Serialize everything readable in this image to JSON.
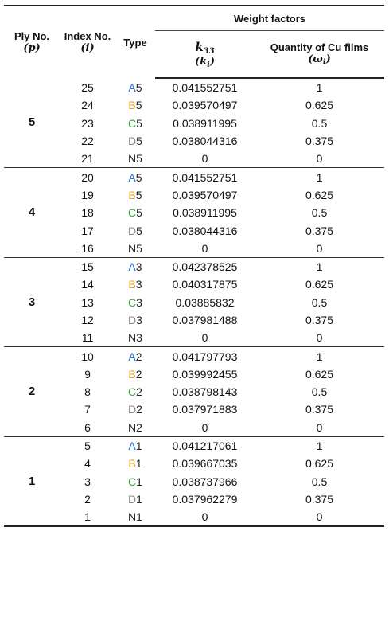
{
  "header": {
    "ply_no": "Ply No.",
    "ply_sym": "(p)",
    "index_no": "Index No.",
    "index_sym": "(i)",
    "type": "Type",
    "weight_factors": "Weight factors",
    "k33_main": "k",
    "k33_sub": "33",
    "k33_paren_main": "(k",
    "k33_paren_sub": "i",
    "k33_paren_end": ")",
    "qty_label": "Quantity of Cu films",
    "qty_paren_main": "(ω",
    "qty_paren_sub": "i",
    "qty_paren_end": ")"
  },
  "type_colors": {
    "A": "#2a6fd6",
    "B": "#e2a21a",
    "C": "#3aa63a",
    "D": "#888888",
    "N": "#222222"
  },
  "groups": [
    {
      "ply": "5",
      "rows": [
        {
          "index": "25",
          "letter": "A",
          "num": "5",
          "k": "0.041552751",
          "w": "1"
        },
        {
          "index": "24",
          "letter": "B",
          "num": "5",
          "k": "0.039570497",
          "w": "0.625"
        },
        {
          "index": "23",
          "letter": "C",
          "num": "5",
          "k": "0.038911995",
          "w": "0.5"
        },
        {
          "index": "22",
          "letter": "D",
          "num": "5",
          "k": "0.038044316",
          "w": "0.375"
        },
        {
          "index": "21",
          "letter": "N",
          "num": "5",
          "k": "0",
          "w": "0"
        }
      ]
    },
    {
      "ply": "4",
      "rows": [
        {
          "index": "20",
          "letter": "A",
          "num": "5",
          "k": "0.041552751",
          "w": "1"
        },
        {
          "index": "19",
          "letter": "B",
          "num": "5",
          "k": "0.039570497",
          "w": "0.625"
        },
        {
          "index": "18",
          "letter": "C",
          "num": "5",
          "k": "0.038911995",
          "w": "0.5"
        },
        {
          "index": "17",
          "letter": "D",
          "num": "5",
          "k": "0.038044316",
          "w": "0.375"
        },
        {
          "index": "16",
          "letter": "N",
          "num": "5",
          "k": "0",
          "w": "0"
        }
      ]
    },
    {
      "ply": "3",
      "rows": [
        {
          "index": "15",
          "letter": "A",
          "num": "3",
          "k": "0.042378525",
          "w": "1"
        },
        {
          "index": "14",
          "letter": "B",
          "num": "3",
          "k": "0.040317875",
          "w": "0.625"
        },
        {
          "index": "13",
          "letter": "C",
          "num": "3",
          "k": "0.03885832",
          "w": "0.5"
        },
        {
          "index": "12",
          "letter": "D",
          "num": "3",
          "k": "0.037981488",
          "w": "0.375"
        },
        {
          "index": "11",
          "letter": "N",
          "num": "3",
          "k": "0",
          "w": "0"
        }
      ]
    },
    {
      "ply": "2",
      "rows": [
        {
          "index": "10",
          "letter": "A",
          "num": "2",
          "k": "0.041797793",
          "w": "1"
        },
        {
          "index": "9",
          "letter": "B",
          "num": "2",
          "k": "0.039992455",
          "w": "0.625"
        },
        {
          "index": "8",
          "letter": "C",
          "num": "2",
          "k": "0.038798143",
          "w": "0.5"
        },
        {
          "index": "7",
          "letter": "D",
          "num": "2",
          "k": "0.037971883",
          "w": "0.375"
        },
        {
          "index": "6",
          "letter": "N",
          "num": "2",
          "k": "0",
          "w": "0"
        }
      ]
    },
    {
      "ply": "1",
      "rows": [
        {
          "index": "5",
          "letter": "A",
          "num": "1",
          "k": "0.041217061",
          "w": "1"
        },
        {
          "index": "4",
          "letter": "B",
          "num": "1",
          "k": "0.039667035",
          "w": "0.625"
        },
        {
          "index": "3",
          "letter": "C",
          "num": "1",
          "k": "0.038737966",
          "w": "0.5"
        },
        {
          "index": "2",
          "letter": "D",
          "num": "1",
          "k": "0.037962279",
          "w": "0.375"
        },
        {
          "index": "1",
          "letter": "N",
          "num": "1",
          "k": "0",
          "w": "0"
        }
      ]
    }
  ]
}
